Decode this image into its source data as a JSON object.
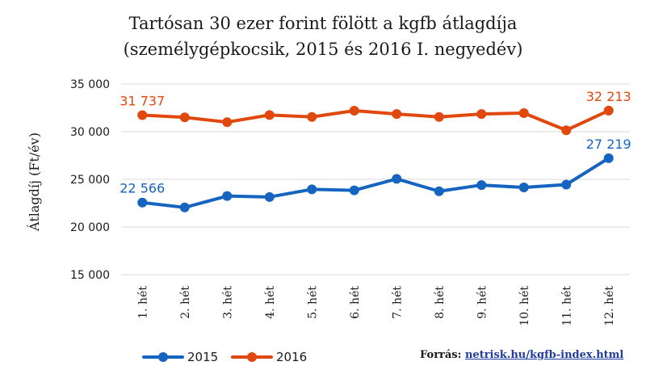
{
  "chart_data": {
    "type": "line",
    "title_line1": "Tartósan 30 ezer forint fölött a kgfb átlagdíja",
    "title_line2": "(személygépkocsik, 2015 és 2016 I. negyedév)",
    "ylabel": "Átlagdíj (Ft/év)",
    "xlabel": "",
    "ylim": [
      15000,
      35000
    ],
    "yticks": [
      "15 000",
      "20 000",
      "25 000",
      "30 000",
      "35 000"
    ],
    "ytick_values": [
      15000,
      20000,
      25000,
      30000,
      35000
    ],
    "categories": [
      "1. hét",
      "2. hét",
      "3. hét",
      "4. hét",
      "5. hét",
      "6. hét",
      "7. hét",
      "8. hét",
      "9. hét",
      "10. hét",
      "11. hét",
      "12. hét"
    ],
    "grid": true,
    "legend_position": "bottom-left",
    "series": [
      {
        "name": "2015",
        "color": "#1565c0",
        "values": [
          22566,
          22050,
          23250,
          23150,
          23950,
          23850,
          25050,
          23750,
          24400,
          24150,
          24450,
          27219
        ],
        "labels": [
          {
            "index": 0,
            "text": "22 566"
          },
          {
            "index": 11,
            "text": "27 219"
          }
        ]
      },
      {
        "name": "2016",
        "color": "#e0480e",
        "values": [
          31737,
          31500,
          31000,
          31750,
          31550,
          32200,
          31850,
          31550,
          31850,
          31950,
          30150,
          32213
        ],
        "labels": [
          {
            "index": 0,
            "text": "31 737"
          },
          {
            "index": 11,
            "text": "32 213"
          }
        ]
      }
    ]
  },
  "source": {
    "label": "Forrás:",
    "link_text": "netrisk.hu/kgfb-index.html"
  }
}
